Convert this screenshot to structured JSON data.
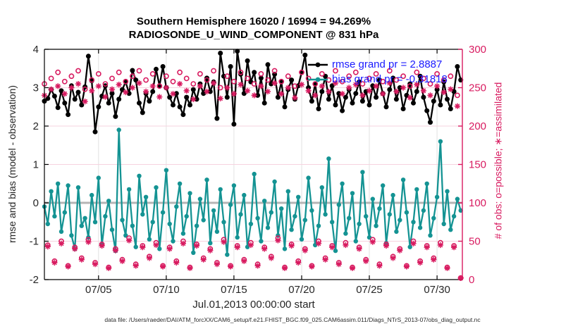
{
  "title": {
    "line1": "Southern Hemisphere 16020 / 16994 = 94.269%",
    "line2": "RADIOSONDE_U_WIND_COMPONENT @ 831 hPa"
  },
  "legend": {
    "text_color": "#1a1aff",
    "items": [
      {
        "label": "rmse grand pr = 2.8887",
        "color": "#000000"
      },
      {
        "label": "bias grand pr = -0.31818",
        "color": "#149393"
      }
    ]
  },
  "footer": {
    "text": "data file: /Users/raeder/DAI/ATM_forcXX/CAM6_setup/f.e21.FHIST_BGC.f09_025.CAM6assim.011/Diags_NTrS_2013-07/obs_diag_output.nc"
  },
  "colors": {
    "pink": "#d81b60",
    "teal": "#149393",
    "black": "#000000",
    "legend_text": "#1a1aff",
    "grid_pink": "#f6d3df",
    "grid_gray": "#e2e2e2",
    "zero_line": "#b5b5b5",
    "axis_text": "#262626"
  },
  "chart_data": {
    "type": "line",
    "title": "Southern Hemisphere 16020 / 16994 = 94.269%",
    "subtitle": "RADIOSONDE_U_WIND_COMPONENT @ 831 hPa",
    "grid": true,
    "zero_line": true,
    "legend_position": "upper-right-inside",
    "time_axis": {
      "x_axis_label": "Jul.01,2013 00:00:00 start",
      "start_day": 1.0,
      "step_days": 0.25,
      "count": 124,
      "xlim": [
        1,
        31.87
      ],
      "x_tick_values": [
        5,
        10,
        15,
        20,
        25,
        30
      ],
      "x_tick_labels": [
        "07/05",
        "07/10",
        "07/15",
        "07/20",
        "07/25",
        "07/30"
      ]
    },
    "left_axis": {
      "label": "rmse and bias (model - observation)",
      "lim": [
        -2,
        4
      ],
      "ticks": [
        -2,
        -1,
        0,
        1,
        2,
        3,
        4
      ]
    },
    "right_axis": {
      "label": "# of obs: o=possible; ∗=assimilated",
      "lim": [
        0,
        300
      ],
      "ticks": [
        0,
        50,
        100,
        150,
        200,
        250,
        300
      ],
      "color": "#d81b60"
    },
    "series": [
      {
        "name": "rmse",
        "axis": "left",
        "color": "#000000",
        "marker": "filled-circle",
        "grand_value": 2.8887,
        "values": [
          2.65,
          2.72,
          2.95,
          2.78,
          2.48,
          2.92,
          2.6,
          2.3,
          3.05,
          2.7,
          2.88,
          2.55,
          3.02,
          3.82,
          3.18,
          1.85,
          2.5,
          2.78,
          3.05,
          2.6,
          2.85,
          2.25,
          2.7,
          2.95,
          3.15,
          2.85,
          3.45,
          3.2,
          2.6,
          2.35,
          2.85,
          2.65,
          2.9,
          3.48,
          3.05,
          3.55,
          3.0,
          2.75,
          2.55,
          2.85,
          2.5,
          2.3,
          2.75,
          2.55,
          2.95,
          2.7,
          3.1,
          2.85,
          3.25,
          2.9,
          3.15,
          2.2,
          3.9,
          3.3,
          2.75,
          3.55,
          2.05,
          3.95,
          3.35,
          2.85,
          3.7,
          3.15,
          3.4,
          2.8,
          3.25,
          2.6,
          3.6,
          3.1,
          3.35,
          2.75,
          3.15,
          2.5,
          2.95,
          3.2,
          2.7,
          3.05,
          3.4,
          3.85,
          3.0,
          2.65,
          3.1,
          2.45,
          2.9,
          3.3,
          2.7,
          3.05,
          2.55,
          2.85,
          2.4,
          2.75,
          2.95,
          2.6,
          2.85,
          3.15,
          2.65,
          2.9,
          2.55,
          3.05,
          2.75,
          3.2,
          2.85,
          2.5,
          2.95,
          3.25,
          2.7,
          3.0,
          2.45,
          2.8,
          3.1,
          2.6,
          2.9,
          3.3,
          2.75,
          2.4,
          2.1,
          2.65,
          2.95,
          2.55,
          3.15,
          2.7,
          2.45,
          2.9,
          3.55,
          3.2
        ]
      },
      {
        "name": "bias",
        "axis": "left",
        "color": "#149393",
        "marker": "filled-circle",
        "grand_value": -0.31818,
        "values": [
          -0.1,
          -0.55,
          0.3,
          -0.35,
          0.5,
          -0.75,
          -0.25,
          0.45,
          -0.85,
          -1.2,
          0.4,
          -0.6,
          -0.4,
          -0.9,
          0.2,
          -0.5,
          0.65,
          -1.1,
          -0.35,
          0.05,
          -0.7,
          -1.25,
          1.9,
          -0.45,
          -0.85,
          0.35,
          -0.6,
          -1.15,
          0.7,
          -0.3,
          0.15,
          -0.95,
          -0.5,
          0.4,
          -1.2,
          -0.25,
          0.85,
          -0.55,
          -1.0,
          -0.1,
          0.5,
          -0.8,
          -0.35,
          0.25,
          -1.3,
          -0.6,
          0.1,
          -0.45,
          0.6,
          -1.05,
          -0.2,
          -0.75,
          0.35,
          -0.5,
          -1.35,
          -0.05,
          0.45,
          -0.9,
          -0.3,
          0.2,
          -1.15,
          -0.55,
          0.75,
          -0.4,
          -1.0,
          0.05,
          -0.65,
          -0.25,
          0.55,
          -0.85,
          -0.15,
          -1.2,
          0.3,
          -0.7,
          -0.35,
          0.15,
          -0.95,
          -0.45,
          0.65,
          -0.2,
          -1.1,
          -0.6,
          0.4,
          -0.3,
          1.15,
          -0.5,
          -1.25,
          -0.05,
          0.5,
          -0.8,
          -0.4,
          0.25,
          -1.0,
          -0.55,
          0.8,
          -0.35,
          -0.9,
          0.1,
          -0.6,
          -0.15,
          0.45,
          -1.05,
          -0.3,
          0.2,
          -0.75,
          -0.45,
          0.6,
          -0.25,
          -1.15,
          -0.5,
          0.35,
          -0.65,
          -0.2,
          0.5,
          -0.85,
          -0.4,
          0.15,
          1.6,
          -0.55,
          0.3,
          -0.7,
          -0.35,
          0.1,
          -0.2
        ]
      },
      {
        "name": "N_possible",
        "axis": "right",
        "color": "#d81b60",
        "marker": "open-circle",
        "values": [
          255,
          45,
          262,
          24,
          270,
          50,
          258,
          18,
          265,
          42,
          272,
          28,
          248,
          52,
          260,
          22,
          268,
          46,
          255,
          16,
          262,
          40,
          270,
          26,
          258,
          54,
          265,
          20,
          272,
          44,
          260,
          30,
          268,
          48,
          252,
          18,
          265,
          42,
          258,
          24,
          270,
          50,
          262,
          16,
          255,
          46,
          268,
          28,
          260,
          40,
          272,
          22,
          250,
          52,
          265,
          18,
          258,
          44,
          270,
          26,
          262,
          48,
          255,
          20,
          268,
          42,
          260,
          30,
          272,
          54,
          258,
          16,
          265,
          46,
          252,
          24,
          270,
          40,
          262,
          18,
          255,
          50,
          268,
          28,
          260,
          44,
          272,
          22,
          258,
          48,
          265,
          16,
          270,
          42,
          255,
          26,
          262,
          52,
          268,
          20,
          258,
          46,
          272,
          30,
          260,
          40,
          265,
          18,
          252,
          50,
          270,
          24,
          262,
          44,
          255,
          28,
          268,
          48,
          260,
          16,
          265,
          44,
          240,
          2
        ]
      },
      {
        "name": "N_assimilated",
        "axis": "right",
        "color": "#d81b60",
        "marker": "asterisk",
        "values": [
          240,
          43,
          248,
          22,
          252,
          47,
          242,
          17,
          250,
          40,
          255,
          26,
          232,
          49,
          246,
          20,
          252,
          44,
          238,
          15,
          248,
          38,
          254,
          24,
          244,
          51,
          250,
          18,
          256,
          42,
          245,
          28,
          252,
          45,
          238,
          17,
          250,
          40,
          242,
          22,
          255,
          47,
          246,
          15,
          235,
          44,
          252,
          26,
          245,
          38,
          256,
          20,
          236,
          49,
          250,
          17,
          242,
          42,
          254,
          24,
          246,
          45,
          240,
          18,
          252,
          40,
          245,
          28,
          256,
          51,
          242,
          15,
          250,
          44,
          237,
          22,
          254,
          38,
          246,
          17,
          240,
          47,
          252,
          26,
          245,
          42,
          256,
          20,
          242,
          45,
          250,
          15,
          254,
          40,
          240,
          24,
          246,
          49,
          252,
          18,
          242,
          44,
          256,
          28,
          245,
          38,
          250,
          17,
          237,
          47,
          254,
          22,
          246,
          42,
          240,
          26,
          252,
          45,
          244,
          15,
          248,
          42,
          226,
          2
        ]
      }
    ]
  }
}
